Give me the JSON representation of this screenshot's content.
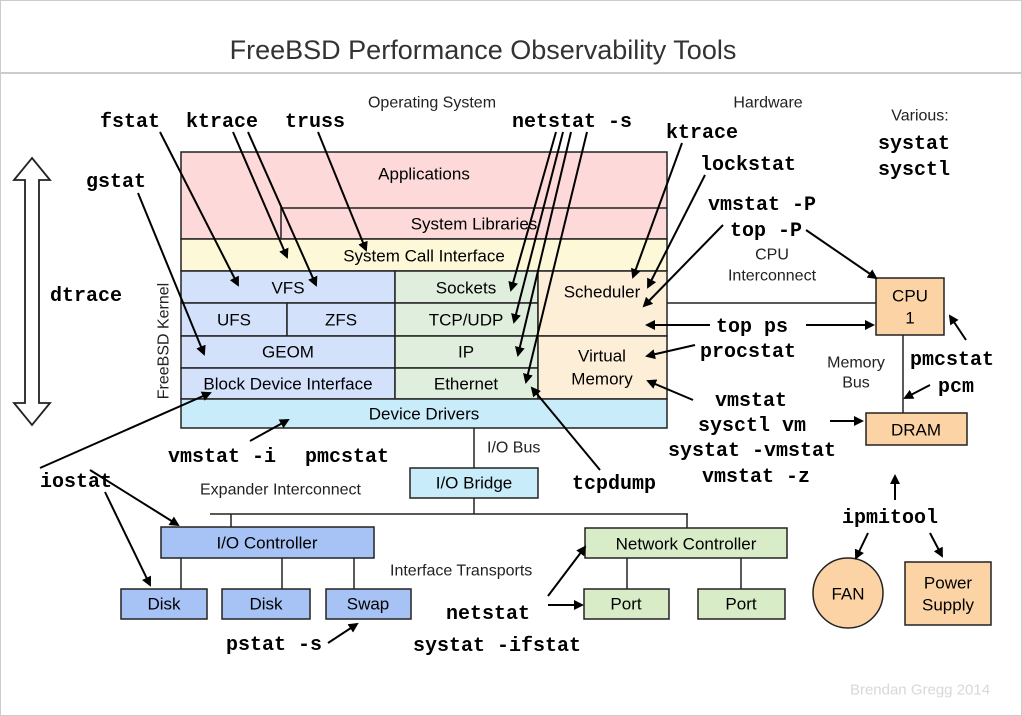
{
  "title": "FreeBSD Performance Observability Tools",
  "footer": "Brendan Gregg 2014",
  "section_labels": {
    "os": "Operating System",
    "hardware": "Hardware",
    "kernel": "FreeBSD Kernel",
    "various": "Various:",
    "cpu_interconnect_1": "CPU",
    "cpu_interconnect_2": "Interconnect",
    "memory_bus_1": "Memory",
    "memory_bus_2": "Bus",
    "io_bus": "I/O Bus",
    "expander": "Expander Interconnect",
    "interface_transports": "Interface Transports"
  },
  "layers": {
    "applications": "Applications",
    "system_libraries": "System Libraries",
    "syscall": "System Call Interface",
    "vfs": "VFS",
    "ufs": "UFS",
    "zfs": "ZFS",
    "geom": "GEOM",
    "block_device": "Block Device Interface",
    "sockets": "Sockets",
    "tcp_udp": "TCP/UDP",
    "ip": "IP",
    "ethernet": "Ethernet",
    "scheduler": "Scheduler",
    "vm_1": "Virtual",
    "vm_2": "Memory",
    "device_drivers": "Device Drivers"
  },
  "hardware": {
    "io_bridge": "I/O Bridge",
    "io_controller": "I/O Controller",
    "disk1": "Disk",
    "disk2": "Disk",
    "swap": "Swap",
    "network_controller": "Network Controller",
    "port1": "Port",
    "port2": "Port",
    "cpu_1": "CPU",
    "cpu_2": "1",
    "dram": "DRAM",
    "fan": "FAN",
    "psu_1": "Power",
    "psu_2": "Supply"
  },
  "tools": {
    "fstat": "fstat",
    "ktrace": "ktrace",
    "truss": "truss",
    "netstat_s": "netstat -s",
    "ktrace_hw": "ktrace",
    "lockstat": "lockstat",
    "gstat": "gstat",
    "vmstat_P": "vmstat -P",
    "top_P": "top -P",
    "dtrace": "dtrace",
    "top_ps": "top ps",
    "procstat": "procstat",
    "pmcstat_cpu": "pmcstat",
    "pcm": "pcm",
    "vmstat": "vmstat",
    "sysctl_vm": "sysctl vm",
    "systat_vmstat": "systat -vmstat",
    "vmstat_z": "vmstat -z",
    "vmstat_i": "vmstat -i",
    "pmcstat_io": "pmcstat",
    "iostat": "iostat",
    "tcpdump": "tcpdump",
    "ipmitool": "ipmitool",
    "netstat": "netstat",
    "systat_ifstat": "systat -ifstat",
    "pstat_s": "pstat -s",
    "systat": "systat",
    "sysctl": "sysctl"
  },
  "colors": {
    "applications": "#fdd9d9",
    "syscall": "#fdf8d8",
    "storage": "#d3e1fb",
    "network": "#dfeedd",
    "cpu_mem": "#fdeed8",
    "drivers": "#c9ecfb",
    "io_controller": "#a7c2f5",
    "net_hw": "#d8ecc8",
    "hw_peach": "#fcd3a5"
  }
}
